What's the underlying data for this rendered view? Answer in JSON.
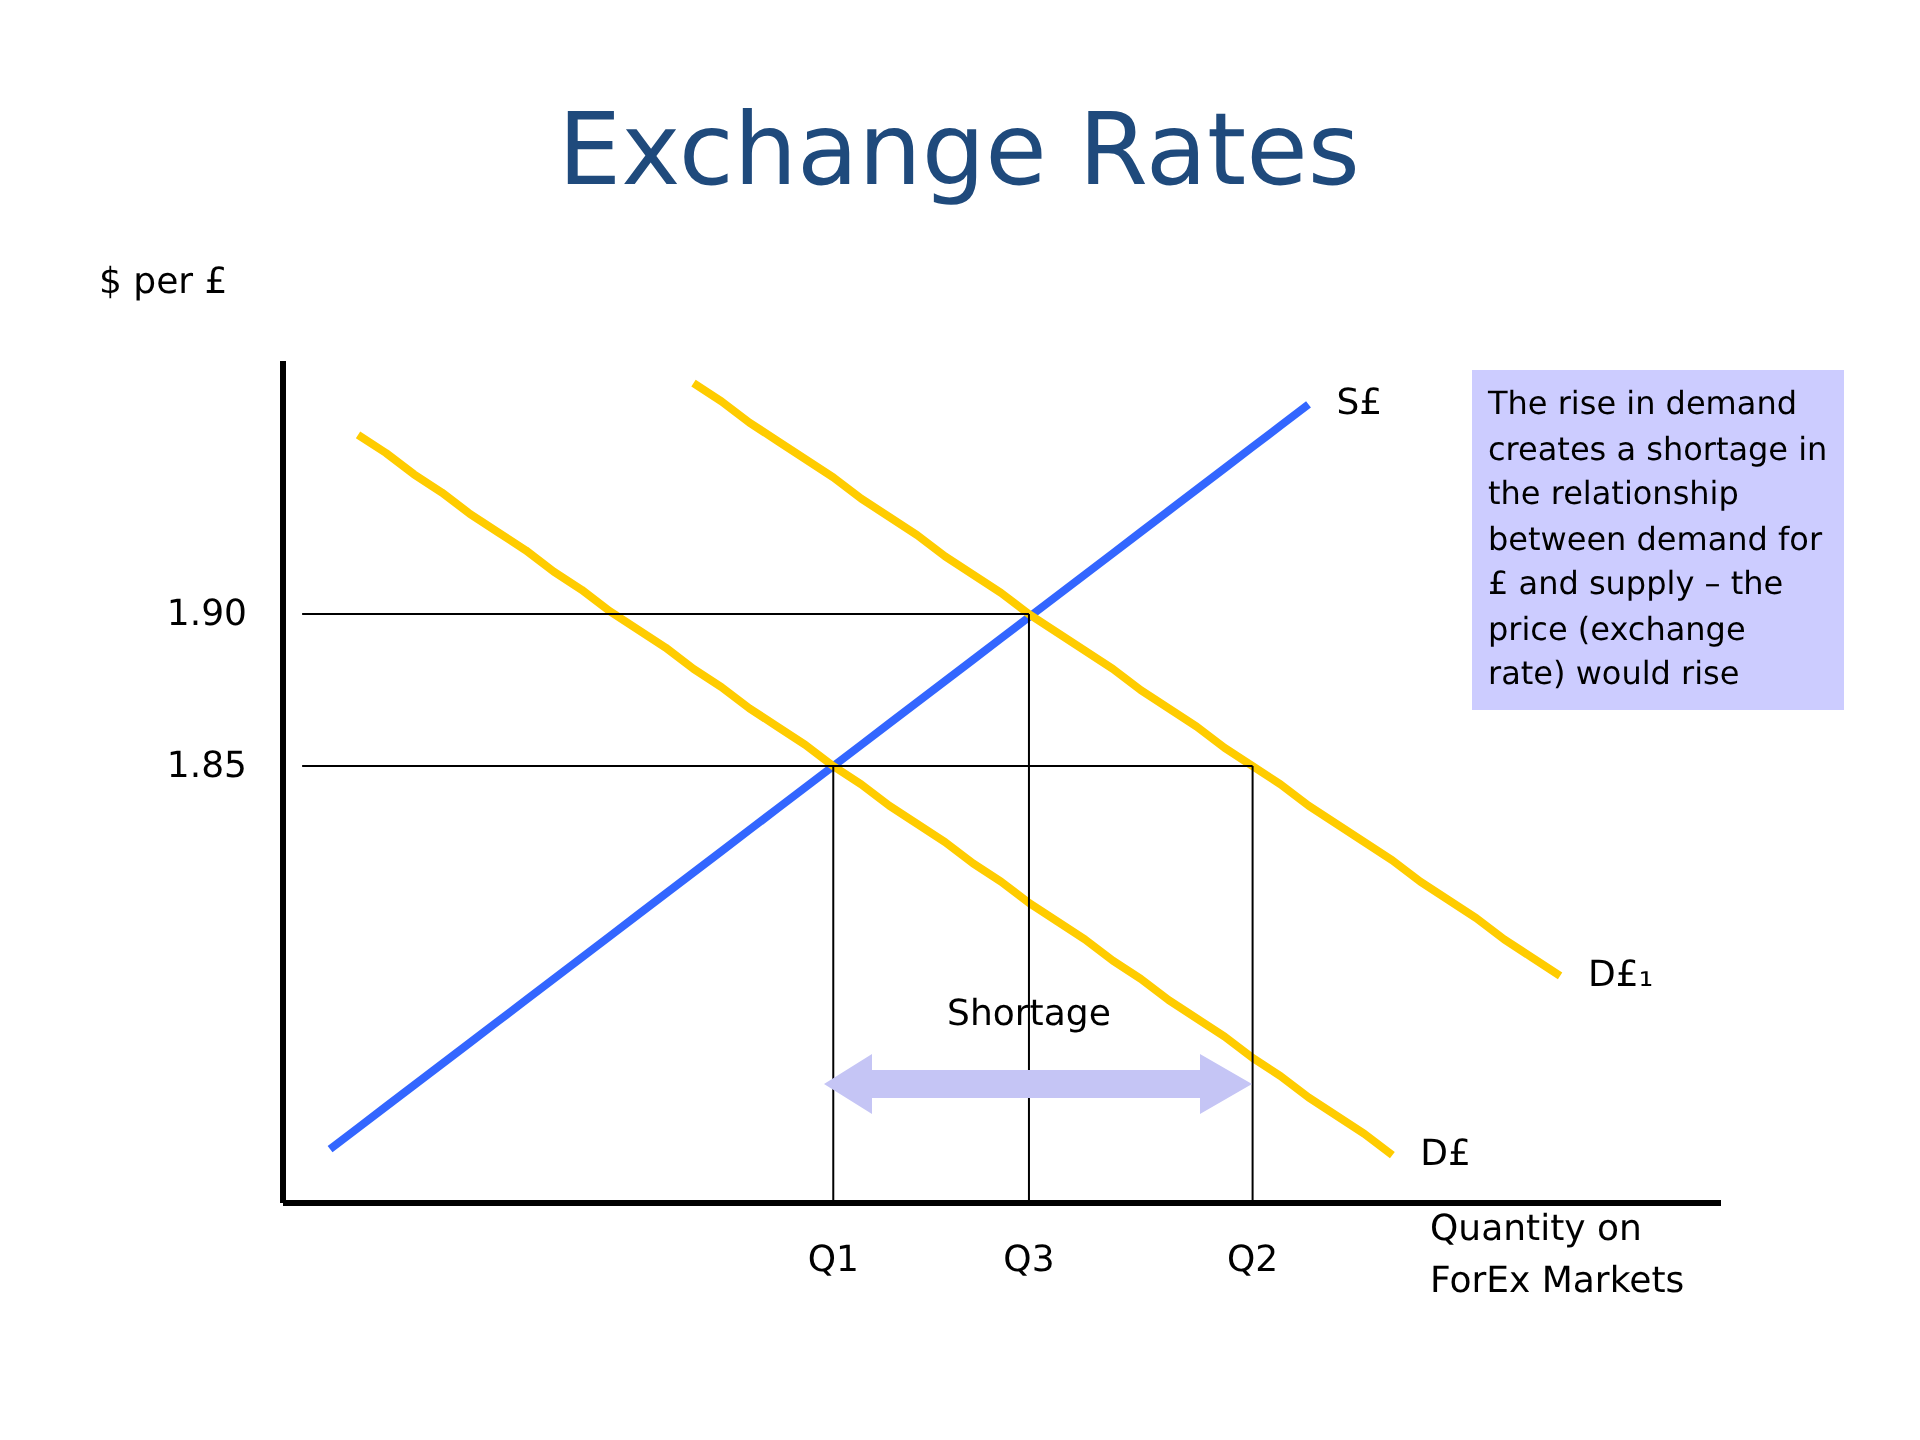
{
  "chart_data": {
    "type": "line",
    "title": "Exchange Rates",
    "ylabel": "$ per £",
    "xlabel": "Quantity on ForEx Markets",
    "categories": [
      null,
      null,
      null,
      null,
      null,
      null,
      null,
      null,
      null,
      null,
      null,
      null,
      null,
      null,
      null,
      null,
      null,
      null,
      null,
      "Q1",
      null,
      null,
      null,
      null,
      null,
      null,
      "Q3",
      null,
      null,
      null,
      null,
      null,
      null,
      null,
      "Q2",
      null,
      null,
      null,
      null,
      null,
      null,
      null,
      null,
      null,
      null,
      null,
      null,
      null,
      null,
      null,
      null
    ],
    "ylim": [
      1.7066,
      1.9836
    ],
    "yticks": [
      1.85,
      {
        "value": 1.9,
        "label": "1.90"
      }
    ],
    "series": [
      {
        "name": "S£",
        "color": "#3366ff",
        "values": [
          null,
          1.724,
          1.731,
          1.738,
          1.745,
          1.752,
          1.759,
          1.766,
          1.773,
          1.78,
          1.787,
          1.794,
          1.801,
          1.808,
          1.815,
          1.822,
          1.829,
          1.836,
          1.843,
          1.85,
          1.857,
          1.864,
          1.871,
          1.878,
          1.885,
          1.892,
          1.899,
          1.906,
          1.913,
          1.92,
          1.927,
          1.934,
          1.941,
          1.948,
          1.955,
          1.962,
          1.969,
          null,
          null,
          null,
          null,
          null,
          null,
          null,
          null,
          null,
          null,
          null,
          null,
          null,
          null
        ]
      },
      {
        "name": "D£",
        "color": "#ffcc00",
        "values": [
          null,
          null,
          1.959,
          1.953,
          1.946,
          1.94,
          1.933,
          1.927,
          1.921,
          1.914,
          1.908,
          1.901,
          1.895,
          1.889,
          1.882,
          1.876,
          1.869,
          1.863,
          1.857,
          1.85,
          1.844,
          1.837,
          1.831,
          1.825,
          1.818,
          1.812,
          1.805,
          1.799,
          1.793,
          1.786,
          1.78,
          1.773,
          1.767,
          1.761,
          1.754,
          1.748,
          1.741,
          1.735,
          1.729,
          1.722,
          null,
          null,
          null,
          null,
          null,
          null,
          null,
          null,
          null,
          null,
          null
        ]
      },
      {
        "name": "D£₁",
        "color": "#ffcc00",
        "values": [
          null,
          null,
          null,
          null,
          null,
          null,
          null,
          null,
          null,
          null,
          null,
          null,
          null,
          null,
          1.976,
          1.97,
          1.963,
          1.957,
          1.951,
          1.945,
          1.938,
          1.932,
          1.926,
          1.919,
          1.913,
          1.907,
          1.9,
          1.894,
          1.888,
          1.882,
          1.875,
          1.869,
          1.863,
          1.856,
          1.85,
          1.844,
          1.837,
          1.831,
          1.825,
          1.819,
          1.812,
          1.806,
          1.8,
          1.793,
          1.787,
          1.781,
          null,
          null,
          null,
          null,
          null
        ]
      },
      {
        "color": "#000000",
        "values": [
          1.9,
          1.9,
          1.9,
          1.9,
          1.9,
          1.9,
          1.9,
          1.9,
          1.9,
          1.9,
          1.9,
          1.9,
          1.9,
          1.9,
          1.9,
          1.9,
          1.9,
          1.9,
          1.9,
          1.9,
          1.9,
          1.9,
          1.9,
          1.9,
          1.9,
          1.9,
          1.9,
          null,
          null,
          null,
          null,
          null,
          null,
          null,
          null,
          null,
          null,
          null,
          null,
          null,
          null,
          null,
          null,
          null,
          null,
          null,
          null,
          null,
          null,
          null,
          null
        ]
      },
      {
        "color": "#000000",
        "values": [
          1.85,
          1.85,
          1.85,
          1.85,
          1.85,
          1.85,
          1.85,
          1.85,
          1.85,
          1.85,
          1.85,
          1.85,
          1.85,
          1.85,
          1.85,
          1.85,
          1.85,
          1.85,
          1.85,
          1.85,
          1.85,
          1.85,
          1.85,
          1.85,
          1.85,
          1.85,
          1.85,
          1.85,
          1.85,
          1.85,
          1.85,
          1.85,
          1.85,
          1.85,
          1.85,
          null,
          null,
          null,
          null,
          null,
          null,
          null,
          null,
          null,
          null,
          null,
          null,
          null,
          null,
          null,
          null
        ]
      },
      {
        "type": "bar",
        "color": "#000000",
        "values": [
          null,
          null,
          null,
          null,
          null,
          null,
          null,
          null,
          null,
          null,
          null,
          null,
          null,
          null,
          null,
          null,
          null,
          null,
          null,
          1.85,
          null,
          null,
          null,
          null,
          null,
          null,
          1.9,
          null,
          null,
          null,
          null,
          null,
          null,
          null,
          1.85,
          null,
          null,
          null,
          null,
          null,
          null,
          null,
          null,
          null,
          null,
          null,
          null,
          null,
          null,
          null,
          null
        ]
      }
    ],
    "annotations": [
      {
        "text": "Shortage",
        "x": "Q3",
        "y": 1.768
      },
      "The rise in demand creates a shortage in the relationship between demand for £ and supply – the price (exchange rate) would rise"
    ],
    "grid": false
  }
}
